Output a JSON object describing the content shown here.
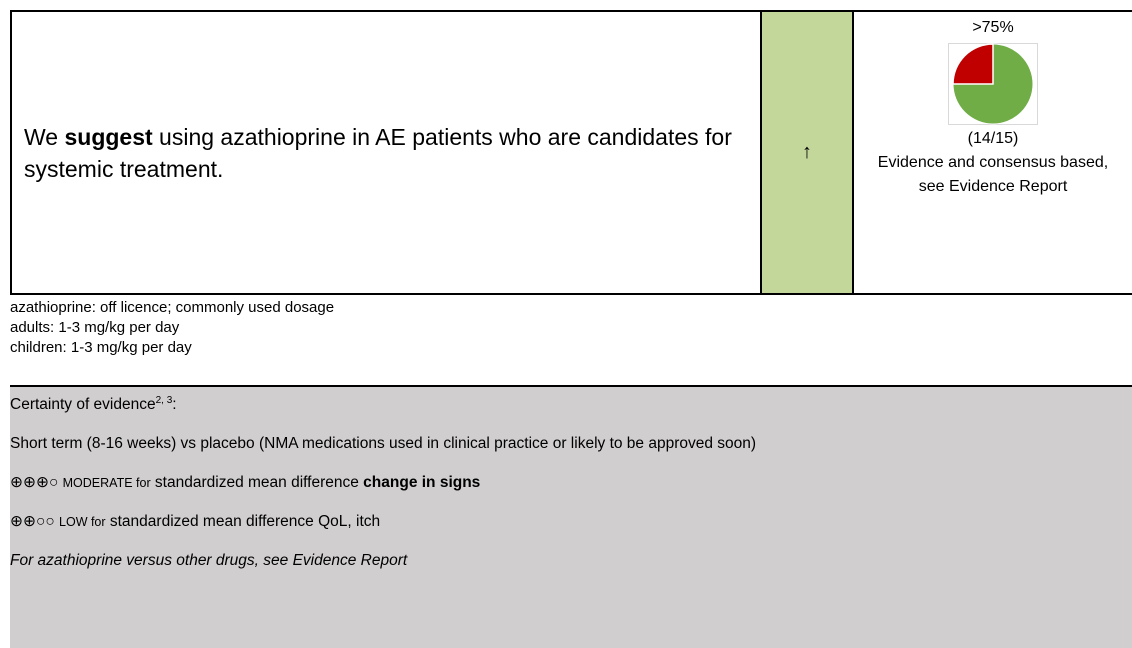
{
  "recommendation": {
    "text_before": "We ",
    "text_bold": "suggest",
    "text_after": " using azathioprine in AE patients who are candidates for systemic treatment."
  },
  "strength": "↑",
  "consensus": {
    "percent": ">75%",
    "votes": "(14/15)",
    "basis": "Evidence and consensus based, see Evidence Report"
  },
  "notes": [
    "azathioprine: off licence; commonly used dosage",
    "adults: 1-3 mg/kg per day",
    "children: 1-3 mg/kg per day"
  ],
  "certainty": {
    "heading": "Certainty of evidence",
    "heading_sup": "2, 3",
    "heading_colon": ":",
    "comparison": "Short term (8-16 weeks) vs placebo (NMA medications used in clinical practice or likely to be approved soon)",
    "outcomes": [
      {
        "symbols": "⊕⊕⊕○",
        "rating": "MODERATE for",
        "text": " standardized mean difference ",
        "bold": "change in signs"
      },
      {
        "symbols": "⊕⊕○○",
        "rating": "LOW for",
        "text": " standardized mean difference QoL, itch",
        "bold": ""
      }
    ],
    "footnote": "For azathioprine versus other drugs, see Evidence Report"
  }
}
